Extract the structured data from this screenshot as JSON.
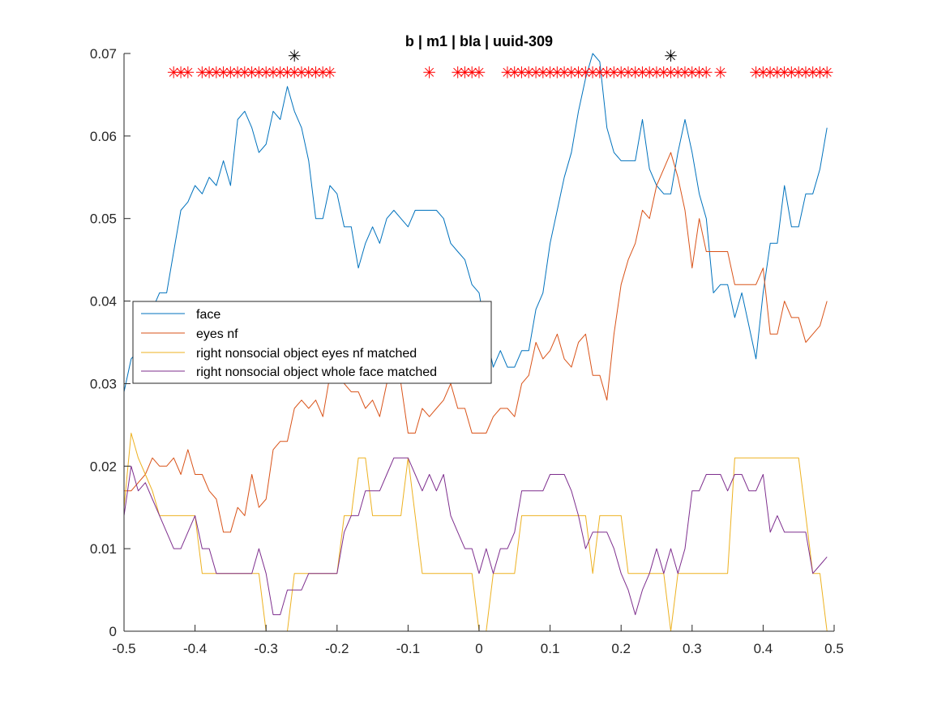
{
  "chart_data": {
    "type": "line",
    "title": "b | m1 | bla | uuid-309",
    "xlabel": "",
    "ylabel": "",
    "xlim": [
      -0.5,
      0.5
    ],
    "ylim": [
      0,
      0.07
    ],
    "xticks": [
      "-0.5",
      "-0.4",
      "-0.3",
      "-0.2",
      "-0.1",
      "0",
      "0.1",
      "0.2",
      "0.3",
      "0.4",
      "0.5"
    ],
    "yticks": [
      "0",
      "0.01",
      "0.02",
      "0.03",
      "0.04",
      "0.05",
      "0.06",
      "0.07"
    ],
    "grid": false,
    "legend_position": "middle-left",
    "x": [
      -0.5,
      -0.49,
      -0.48,
      -0.47,
      -0.46,
      -0.45,
      -0.44,
      -0.43,
      -0.42,
      -0.41,
      -0.4,
      -0.39,
      -0.38,
      -0.37,
      -0.36,
      -0.35,
      -0.34,
      -0.33,
      -0.32,
      -0.31,
      -0.3,
      -0.29,
      -0.28,
      -0.27,
      -0.26,
      -0.25,
      -0.24,
      -0.23,
      -0.22,
      -0.21,
      -0.2,
      -0.19,
      -0.18,
      -0.17,
      -0.16,
      -0.15,
      -0.14,
      -0.13,
      -0.12,
      -0.11,
      -0.1,
      -0.09,
      -0.08,
      -0.07,
      -0.06,
      -0.05,
      -0.04,
      -0.03,
      -0.02,
      -0.01,
      0,
      0.01,
      0.02,
      0.03,
      0.04,
      0.05,
      0.06,
      0.07,
      0.08,
      0.09,
      0.1,
      0.11,
      0.12,
      0.13,
      0.14,
      0.15,
      0.16,
      0.17,
      0.18,
      0.19,
      0.2,
      0.21,
      0.22,
      0.23,
      0.24,
      0.25,
      0.26,
      0.27,
      0.28,
      0.29,
      0.3,
      0.31,
      0.32,
      0.33,
      0.34,
      0.35,
      0.36,
      0.37,
      0.38,
      0.39,
      0.4,
      0.41,
      0.42,
      0.43,
      0.44,
      0.45,
      0.46,
      0.47,
      0.48,
      0.49
    ],
    "series": [
      {
        "name": "face",
        "color": "#0072BD",
        "values": [
          0.029,
          0.033,
          0.034,
          0.036,
          0.039,
          0.041,
          0.041,
          0.046,
          0.051,
          0.052,
          0.054,
          0.053,
          0.055,
          0.054,
          0.057,
          0.054,
          0.062,
          0.063,
          0.061,
          0.058,
          0.059,
          0.063,
          0.062,
          0.066,
          0.063,
          0.061,
          0.057,
          0.05,
          0.05,
          0.054,
          0.053,
          0.049,
          0.049,
          0.044,
          0.047,
          0.049,
          0.047,
          0.05,
          0.051,
          0.05,
          0.049,
          0.051,
          0.051,
          0.051,
          0.051,
          0.05,
          0.047,
          0.046,
          0.045,
          0.042,
          0.041,
          0.036,
          0.032,
          0.034,
          0.032,
          0.032,
          0.034,
          0.034,
          0.039,
          0.041,
          0.047,
          0.051,
          0.055,
          0.058,
          0.063,
          0.067,
          0.07,
          0.069,
          0.061,
          0.058,
          0.057,
          0.057,
          0.057,
          0.062,
          0.056,
          0.054,
          0.053,
          0.053,
          0.058,
          0.062,
          0.058,
          0.053,
          0.05,
          0.041,
          0.042,
          0.042,
          0.038,
          0.041,
          0.037,
          0.033,
          0.041,
          0.047,
          0.047,
          0.054,
          0.049,
          0.049,
          0.053,
          0.053,
          0.056,
          0.061
        ]
      },
      {
        "name": "eyes nf",
        "color": "#D95319",
        "values": [
          0.017,
          0.017,
          0.018,
          0.019,
          0.021,
          0.02,
          0.02,
          0.021,
          0.019,
          0.022,
          0.019,
          0.019,
          0.017,
          0.016,
          0.012,
          0.012,
          0.015,
          0.014,
          0.019,
          0.015,
          0.016,
          0.022,
          0.023,
          0.023,
          0.027,
          0.028,
          0.027,
          0.028,
          0.026,
          0.031,
          0.032,
          0.03,
          0.029,
          0.029,
          0.027,
          0.028,
          0.026,
          0.03,
          0.031,
          0.03,
          0.024,
          0.024,
          0.027,
          0.026,
          0.027,
          0.028,
          0.03,
          0.027,
          0.027,
          0.024,
          0.024,
          0.024,
          0.026,
          0.027,
          0.027,
          0.026,
          0.03,
          0.031,
          0.035,
          0.033,
          0.034,
          0.036,
          0.033,
          0.032,
          0.035,
          0.036,
          0.031,
          0.031,
          0.028,
          0.036,
          0.042,
          0.045,
          0.047,
          0.051,
          0.05,
          0.054,
          0.056,
          0.058,
          0.055,
          0.051,
          0.044,
          0.05,
          0.046,
          0.046,
          0.046,
          0.046,
          0.042,
          0.042,
          0.042,
          0.042,
          0.044,
          0.036,
          0.036,
          0.04,
          0.038,
          0.038,
          0.035,
          0.036,
          0.037,
          0.04
        ]
      },
      {
        "name": "right nonsocial object eyes nf matched",
        "color": "#EDB120",
        "values": [
          0.015,
          0.024,
          0.021,
          0.019,
          0.017,
          0.014,
          0.014,
          0.014,
          0.014,
          0.014,
          0.014,
          0.007,
          0.007,
          0.007,
          0.007,
          0.007,
          0.007,
          0.007,
          0.007,
          0.007,
          0,
          0,
          0,
          0,
          0.007,
          0.007,
          0.007,
          0.007,
          0.007,
          0.007,
          0.007,
          0.014,
          0.014,
          0.021,
          0.021,
          0.014,
          0.014,
          0.014,
          0.014,
          0.014,
          0.021,
          0.014,
          0.007,
          0.007,
          0.007,
          0.007,
          0.007,
          0.007,
          0.007,
          0.007,
          0,
          0,
          0.007,
          0.007,
          0.007,
          0.007,
          0.014,
          0.014,
          0.014,
          0.014,
          0.014,
          0.014,
          0.014,
          0.014,
          0.014,
          0.014,
          0.007,
          0.014,
          0.014,
          0.014,
          0.014,
          0.007,
          0.007,
          0.007,
          0.007,
          0.007,
          0.007,
          0,
          0.007,
          0.007,
          0.007,
          0.007,
          0.007,
          0.007,
          0.007,
          0.007,
          0.021,
          0.021,
          0.021,
          0.021,
          0.021,
          0.021,
          0.021,
          0.021,
          0.021,
          0.021,
          0.014,
          0.007,
          0.007,
          0
        ]
      },
      {
        "name": "right nonsocial object whole face matched",
        "color": "#7E2F8E",
        "values": [
          0.014,
          0.02,
          0.017,
          0.018,
          0.016,
          0.014,
          0.012,
          0.01,
          0.01,
          0.012,
          0.014,
          0.01,
          0.01,
          0.007,
          0.007,
          0.007,
          0.007,
          0.007,
          0.007,
          0.01,
          0.007,
          0.002,
          0.002,
          0.005,
          0.005,
          0.005,
          0.007,
          0.007,
          0.007,
          0.007,
          0.007,
          0.012,
          0.014,
          0.014,
          0.017,
          0.017,
          0.017,
          0.019,
          0.021,
          0.021,
          0.021,
          0.019,
          0.017,
          0.019,
          0.017,
          0.019,
          0.014,
          0.012,
          0.01,
          0.01,
          0.007,
          0.01,
          0.007,
          0.01,
          0.01,
          0.012,
          0.017,
          0.017,
          0.017,
          0.017,
          0.019,
          0.019,
          0.019,
          0.017,
          0.014,
          0.01,
          0.012,
          0.012,
          0.012,
          0.01,
          0.007,
          0.005,
          0.002,
          0.005,
          0.007,
          0.01,
          0.007,
          0.01,
          0.007,
          0.01,
          0.017,
          0.017,
          0.019,
          0.019,
          0.019,
          0.017,
          0.019,
          0.019,
          0.017,
          0.017,
          0.019,
          0.012,
          0.014,
          0.012,
          0.012,
          0.012,
          0.012,
          0.007,
          0.008,
          0.009
        ]
      }
    ],
    "significance_markers": [
      {
        "name": "red",
        "color": "#FF0000",
        "y": 0.068,
        "x": [
          -0.43,
          -0.42,
          -0.41,
          -0.39,
          -0.38,
          -0.37,
          -0.36,
          -0.35,
          -0.34,
          -0.33,
          -0.32,
          -0.31,
          -0.3,
          -0.29,
          -0.28,
          -0.27,
          -0.26,
          -0.25,
          -0.24,
          -0.23,
          -0.22,
          -0.21,
          -0.07,
          -0.03,
          -0.02,
          -0.01,
          0,
          0.04,
          0.05,
          0.06,
          0.07,
          0.08,
          0.09,
          0.1,
          0.11,
          0.12,
          0.13,
          0.14,
          0.15,
          0.16,
          0.17,
          0.18,
          0.19,
          0.2,
          0.21,
          0.22,
          0.23,
          0.24,
          0.25,
          0.26,
          0.27,
          0.28,
          0.29,
          0.3,
          0.31,
          0.32,
          0.34,
          0.39,
          0.4,
          0.41,
          0.42,
          0.43,
          0.44,
          0.45,
          0.46,
          0.47,
          0.48,
          0.49
        ]
      },
      {
        "name": "black",
        "color": "#000000",
        "y": 0.07,
        "x": [
          -0.26,
          0.27
        ]
      }
    ]
  }
}
